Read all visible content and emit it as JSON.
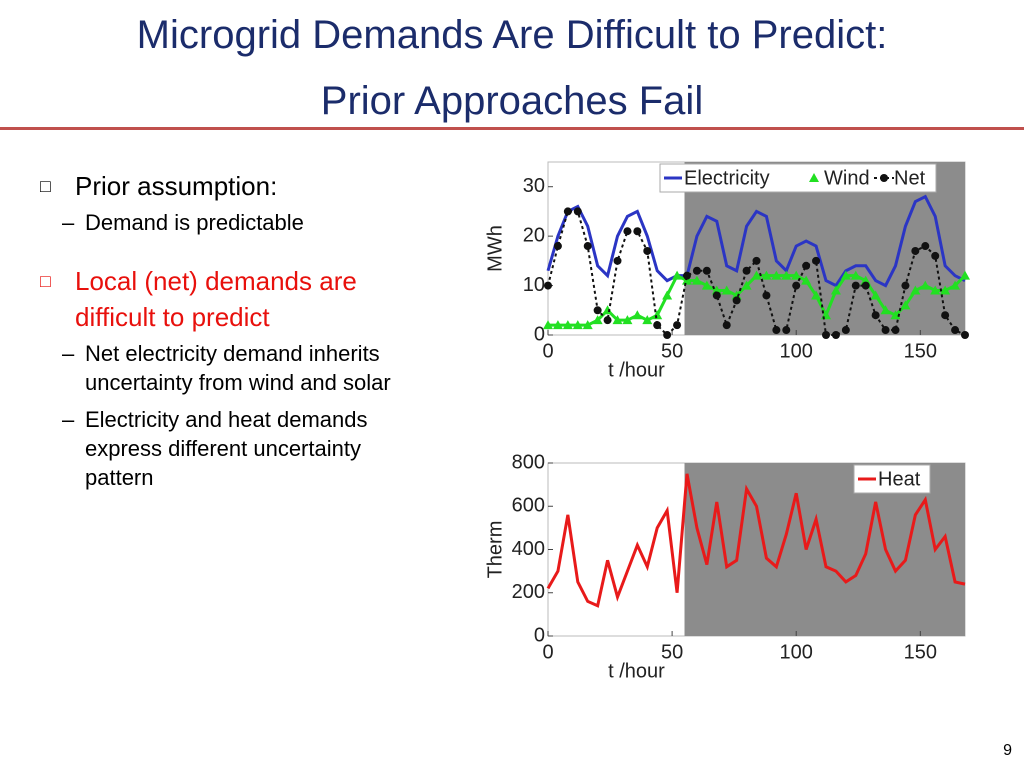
{
  "slide": {
    "title": [
      "Microgrid Demands Are Difficult to Predict:",
      "Prior Approaches Fail"
    ],
    "bullets": [
      {
        "text": "Prior assumption:",
        "sub": [
          "Demand is predictable"
        ]
      },
      {
        "text": "Local (net) demands are difficult to predict",
        "color": "#e8100c",
        "sub": [
          "Net electricity demand inherits uncertainty from wind and solar",
          "Electricity and heat demands express different uncertainty pattern"
        ]
      }
    ],
    "page_number": "9"
  },
  "chart_data": [
    {
      "type": "line",
      "xlabel": "t /hour",
      "ylabel": "MWh",
      "xlim": [
        0,
        168
      ],
      "ylim": [
        0,
        35
      ],
      "xticks": [
        0,
        50,
        100,
        150
      ],
      "yticks": [
        0,
        10,
        20,
        30
      ],
      "shaded_from": 55,
      "legend": "top",
      "x": [
        0,
        4,
        8,
        12,
        16,
        20,
        24,
        28,
        32,
        36,
        40,
        44,
        48,
        52,
        56,
        60,
        64,
        68,
        72,
        76,
        80,
        84,
        88,
        92,
        96,
        100,
        104,
        108,
        112,
        116,
        120,
        124,
        128,
        132,
        136,
        140,
        144,
        148,
        152,
        156,
        160,
        164,
        168
      ],
      "series": [
        {
          "name": "Electricity",
          "color": "#2b35c4",
          "marker": "none",
          "values": [
            13,
            20,
            25,
            26,
            22,
            14,
            12,
            20,
            24,
            25,
            20,
            13,
            11,
            12,
            12,
            20,
            24,
            23,
            14,
            13,
            22,
            25,
            24,
            15,
            13,
            18,
            19,
            18,
            11,
            10,
            13,
            14,
            14,
            11,
            10,
            14,
            22,
            27,
            28,
            24,
            14,
            12,
            11
          ]
        },
        {
          "name": "Wind",
          "color": "#22e022",
          "marker": "triangle",
          "values": [
            2,
            2,
            2,
            2,
            2,
            3,
            5,
            3,
            3,
            4,
            3,
            4,
            8,
            12,
            11,
            11,
            10,
            9,
            9,
            8,
            10,
            12,
            12,
            12,
            12,
            12,
            11,
            8,
            4,
            9,
            12,
            12,
            11,
            8,
            5,
            4,
            6,
            9,
            10,
            9,
            9,
            10,
            12
          ]
        },
        {
          "name": "Net",
          "color": "#111111",
          "marker": "circle",
          "values": [
            10,
            18,
            25,
            25,
            18,
            5,
            3,
            15,
            21,
            21,
            17,
            2,
            0,
            2,
            12,
            13,
            13,
            8,
            2,
            7,
            13,
            15,
            8,
            1,
            1,
            10,
            14,
            15,
            0,
            0,
            1,
            10,
            10,
            4,
            1,
            1,
            10,
            17,
            18,
            16,
            4,
            1,
            0
          ]
        }
      ]
    },
    {
      "type": "line",
      "xlabel": "t /hour",
      "ylabel": "Therm",
      "xlim": [
        0,
        168
      ],
      "ylim": [
        0,
        800
      ],
      "xticks": [
        0,
        50,
        100,
        150
      ],
      "yticks": [
        0,
        200,
        400,
        600,
        800
      ],
      "shaded_from": 55,
      "legend": "top right",
      "x": [
        0,
        4,
        8,
        12,
        16,
        20,
        24,
        28,
        32,
        36,
        40,
        44,
        48,
        52,
        56,
        60,
        64,
        68,
        72,
        76,
        80,
        84,
        88,
        92,
        96,
        100,
        104,
        108,
        112,
        116,
        120,
        124,
        128,
        132,
        136,
        140,
        144,
        148,
        152,
        156,
        160,
        164,
        168
      ],
      "series": [
        {
          "name": "Heat",
          "color": "#e81a1a",
          "marker": "none",
          "values": [
            220,
            300,
            560,
            250,
            160,
            140,
            350,
            180,
            300,
            420,
            320,
            500,
            580,
            200,
            750,
            500,
            330,
            620,
            320,
            350,
            680,
            600,
            360,
            320,
            470,
            660,
            400,
            540,
            320,
            300,
            250,
            280,
            380,
            620,
            400,
            300,
            350,
            560,
            630,
            400,
            460,
            250,
            240
          ]
        }
      ]
    }
  ]
}
